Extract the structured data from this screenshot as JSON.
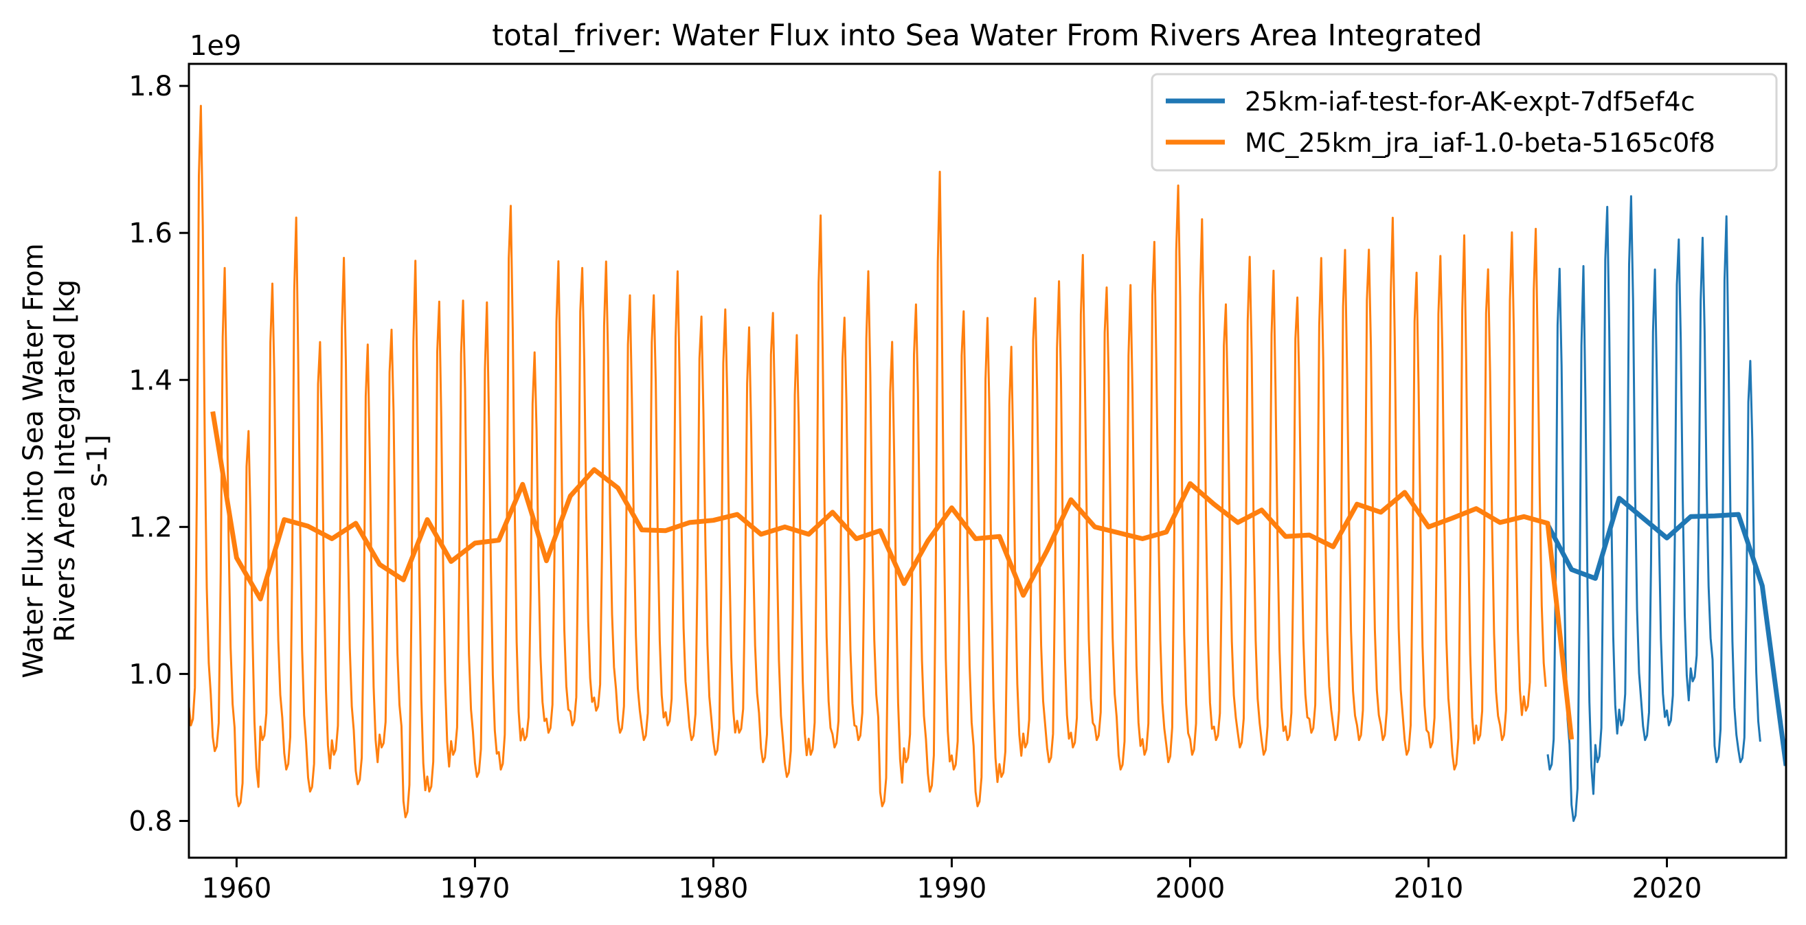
{
  "chart_data": {
    "type": "line",
    "title": "total_friver: Water Flux into Sea Water From Rivers Area Integrated",
    "xlabel": "",
    "ylabel_lines": [
      "Water Flux into Sea Water From",
      "Rivers Area Integrated [kg",
      "s-1]"
    ],
    "y_offset_label": "1e9",
    "xlim": [
      1958.0,
      2025.0
    ],
    "ylim": [
      0.75,
      1.83
    ],
    "x_ticks": [
      "1960",
      "1970",
      "1980",
      "1990",
      "2000",
      "2010",
      "2020"
    ],
    "y_ticks": [
      "0.8",
      "1.0",
      "1.2",
      "1.4",
      "1.6",
      "1.8"
    ],
    "grid": false,
    "legend_position": "top-right",
    "colors": {
      "blue": "#1f77b4",
      "orange": "#ff7f0e"
    },
    "series": [
      {
        "name": "25km-iaf-test-for-AK-expt-7df5ef4c",
        "color": "#1f77b4",
        "monthly": {
          "first_year": 2015,
          "annual_peak": [
            1.557,
            1.535,
            1.657,
            1.643,
            1.541,
            1.611,
            1.579,
            1.625,
            1.437
          ],
          "annual_trough": [
            0.87,
            0.8,
            0.88,
            0.93,
            0.91,
            0.93,
            0.99,
            0.88,
            0.88
          ]
        },
        "annual_mean": {
          "x": [
            2015,
            2016,
            2017,
            2018,
            2019,
            2020,
            2021,
            2022,
            2023,
            2024,
            2025
          ],
          "y": [
            1.203,
            1.142,
            1.13,
            1.239,
            1.212,
            1.185,
            1.214,
            1.215,
            1.217,
            1.12,
            0.875
          ]
        }
      },
      {
        "name": "MC_25km_jra_iaf-1.0-beta-5165c0f8",
        "color": "#ff7f0e",
        "monthly": {
          "first_year": 1958,
          "annual_peak": [
            1.78,
            1.535,
            1.345,
            1.525,
            1.61,
            1.47,
            1.55,
            1.45,
            1.48,
            1.54,
            1.52,
            1.51,
            1.49,
            1.66,
            1.43,
            1.555,
            1.57,
            1.545,
            1.52,
            1.525,
            1.53,
            1.5,
            1.495,
            1.46,
            1.51,
            1.45,
            1.62,
            1.5,
            1.53,
            1.46,
            1.51,
            1.66,
            1.51,
            1.48,
            1.435,
            1.53,
            1.52,
            1.57,
            1.54,
            1.51,
            1.6,
            1.67,
            1.6,
            1.52,
            1.56,
            1.54,
            1.53,
            1.55,
            1.58,
            1.59,
            1.6,
            1.56,
            1.57,
            1.58,
            1.57,
            1.59,
            1.6
          ],
          "annual_trough": [
            0.93,
            0.895,
            0.82,
            0.91,
            0.87,
            0.84,
            0.89,
            0.85,
            0.9,
            0.805,
            0.84,
            0.89,
            0.86,
            0.87,
            0.91,
            0.92,
            0.93,
            0.95,
            0.92,
            0.91,
            0.93,
            0.91,
            0.89,
            0.92,
            0.88,
            0.86,
            0.89,
            0.9,
            0.91,
            0.82,
            0.88,
            0.84,
            0.87,
            0.82,
            0.86,
            0.9,
            0.88,
            0.9,
            0.91,
            0.87,
            0.89,
            0.88,
            0.89,
            0.91,
            0.9,
            0.89,
            0.91,
            0.92,
            0.91,
            0.91,
            0.91,
            0.89,
            0.9,
            0.87,
            0.91,
            0.91,
            0.95
          ]
        },
        "annual_mean": {
          "x": [
            1959,
            1960,
            1961,
            1962,
            1963,
            1964,
            1965,
            1966,
            1967,
            1968,
            1969,
            1970,
            1971,
            1972,
            1973,
            1974,
            1975,
            1976,
            1977,
            1978,
            1979,
            1980,
            1981,
            1982,
            1983,
            1984,
            1985,
            1986,
            1987,
            1988,
            1989,
            1990,
            1991,
            1992,
            1993,
            1994,
            1995,
            1996,
            1997,
            1998,
            1999,
            2000,
            2001,
            2002,
            2003,
            2004,
            2005,
            2006,
            2007,
            2008,
            2009,
            2010,
            2011,
            2012,
            2013,
            2014,
            2015,
            2016
          ],
          "y": [
            1.357,
            1.158,
            1.102,
            1.21,
            1.201,
            1.184,
            1.205,
            1.149,
            1.128,
            1.21,
            1.153,
            1.178,
            1.182,
            1.258,
            1.154,
            1.242,
            1.278,
            1.253,
            1.196,
            1.195,
            1.206,
            1.209,
            1.217,
            1.19,
            1.2,
            1.19,
            1.22,
            1.184,
            1.195,
            1.123,
            1.181,
            1.226,
            1.184,
            1.187,
            1.107,
            1.168,
            1.237,
            1.2,
            1.192,
            1.184,
            1.193,
            1.259,
            1.231,
            1.206,
            1.223,
            1.187,
            1.189,
            1.173,
            1.231,
            1.22,
            1.247,
            1.2,
            1.212,
            1.225,
            1.206,
            1.214,
            1.205,
            0.911
          ]
        }
      }
    ]
  }
}
